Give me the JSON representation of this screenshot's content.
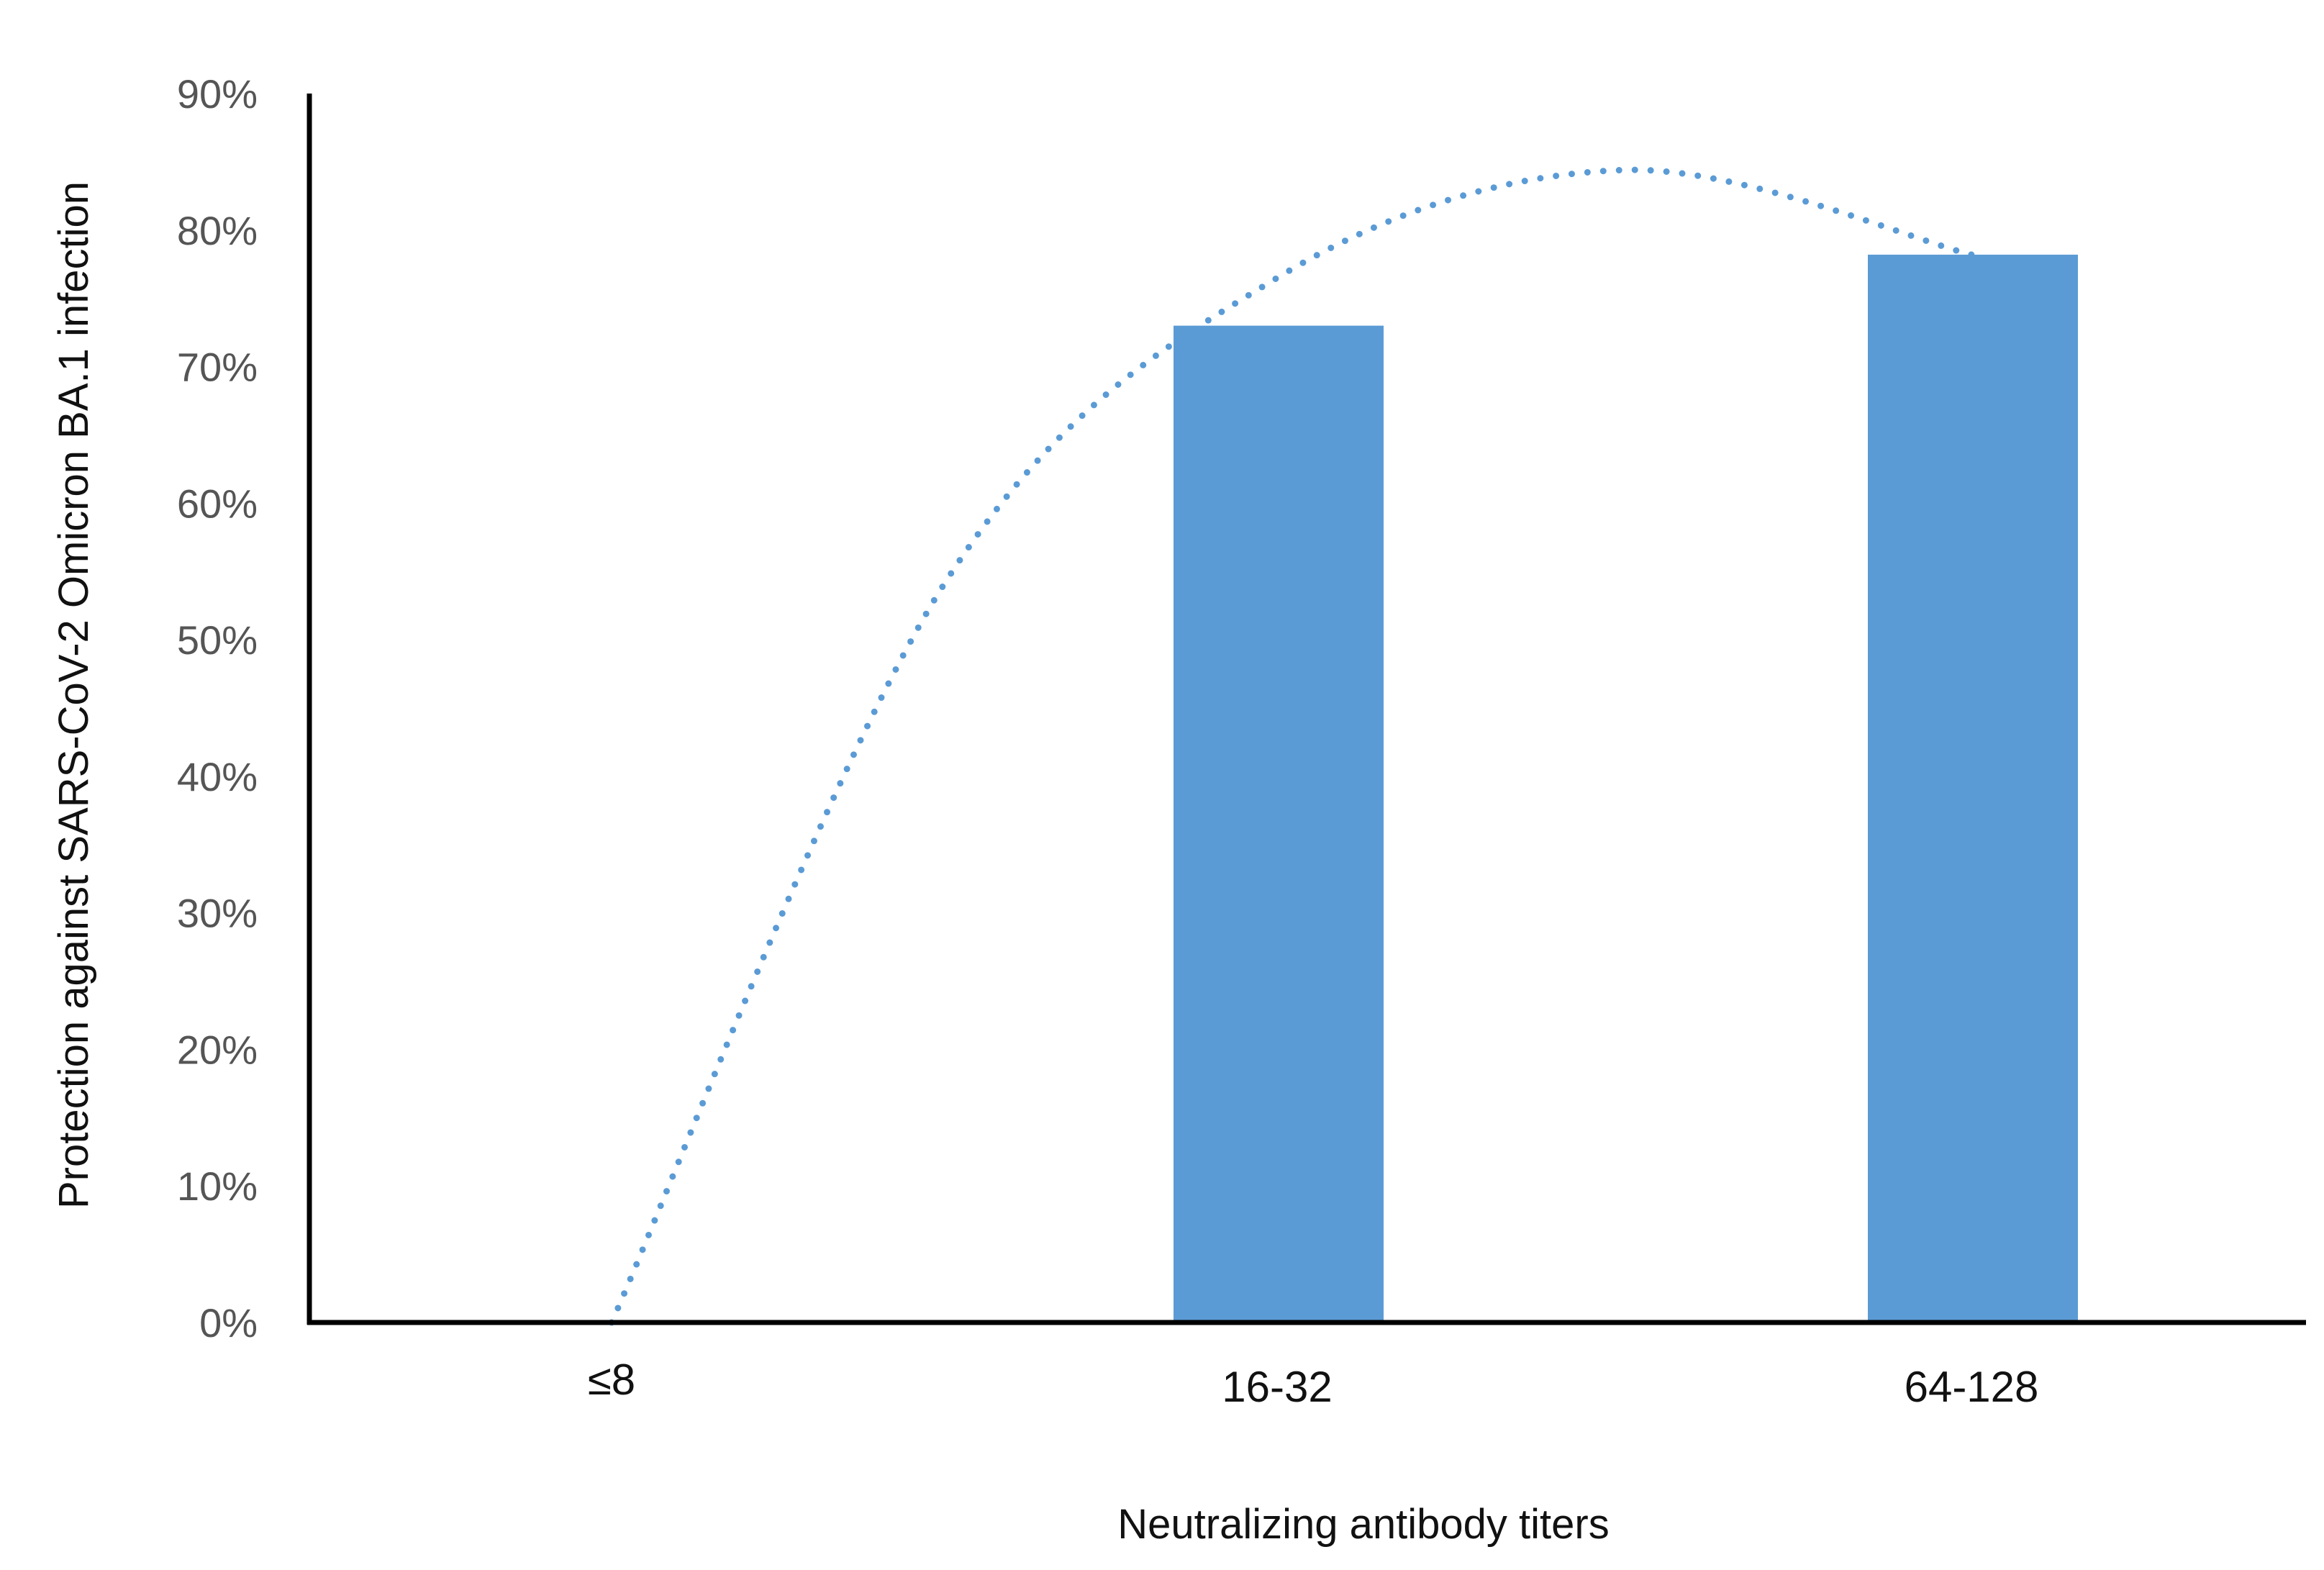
{
  "chart_data": {
    "type": "bar",
    "title": "",
    "xlabel": "Neutralizing antibody titers",
    "ylabel": "Protection against SARS-CoV-2 Omicron BA.1 infection",
    "categories": [
      "≤8",
      "16-32",
      "64-128"
    ],
    "series": [
      {
        "values": [
          0,
          73,
          78.2
        ],
        "color": "#5b9bd5"
      }
    ],
    "trendline": {
      "type": "polynomial",
      "style": "dotted",
      "color": "#5b9bd5",
      "x": [
        0,
        0.5,
        1,
        1.5,
        2
      ],
      "y": [
        0,
        54.1,
        76.5,
        84.4,
        78.2
      ]
    },
    "ylim": [
      0,
      90
    ],
    "yticks": [
      "0%",
      "10%",
      "20%",
      "30%",
      "40%",
      "50%",
      "60%",
      "70%",
      "80%",
      "90%"
    ],
    "grid": false,
    "legend": "none"
  }
}
